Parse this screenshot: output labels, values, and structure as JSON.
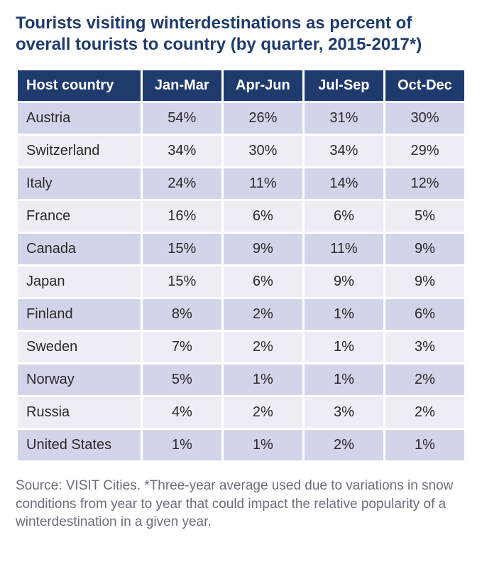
{
  "title": "Tourists visiting winterdestinations as percent of overall tourists to country (by quarter, 2015-2017*)",
  "title_color": "#1f3b6e",
  "table": {
    "type": "table",
    "header_bg": "#1f3b6e",
    "header_fg": "#ffffff",
    "row_bg_odd": "#d2d5ea",
    "row_bg_even": "#eceef6",
    "cell_fg": "#2a2a2a",
    "columns": [
      "Host country",
      "Jan-Mar",
      "Apr-Jun",
      "Jul-Sep",
      "Oct-Dec"
    ],
    "column_align": [
      "left",
      "center",
      "center",
      "center",
      "center"
    ],
    "rows": [
      [
        "Austria",
        "54%",
        "26%",
        "31%",
        "30%"
      ],
      [
        "Switzerland",
        "34%",
        "30%",
        "34%",
        "29%"
      ],
      [
        "Italy",
        "24%",
        "11%",
        "14%",
        "12%"
      ],
      [
        "France",
        "16%",
        "6%",
        "6%",
        "5%"
      ],
      [
        "Canada",
        "15%",
        "9%",
        "11%",
        "9%"
      ],
      [
        "Japan",
        "15%",
        "6%",
        "9%",
        "9%"
      ],
      [
        "Finland",
        "8%",
        "2%",
        "1%",
        "6%"
      ],
      [
        "Sweden",
        "7%",
        "2%",
        "1%",
        "3%"
      ],
      [
        "Norway",
        "5%",
        "1%",
        "1%",
        "2%"
      ],
      [
        "Russia",
        "4%",
        "2%",
        "3%",
        "2%"
      ],
      [
        "United States",
        "1%",
        "1%",
        "2%",
        "1%"
      ]
    ]
  },
  "footnote": "Source: VISIT Cities. *Three-year average used due to variations in snow conditions from year to year that could impact the relative popularity of a winterdestination in a given year.",
  "footnote_color": "#6b6e78",
  "background_color": "#ffffff"
}
